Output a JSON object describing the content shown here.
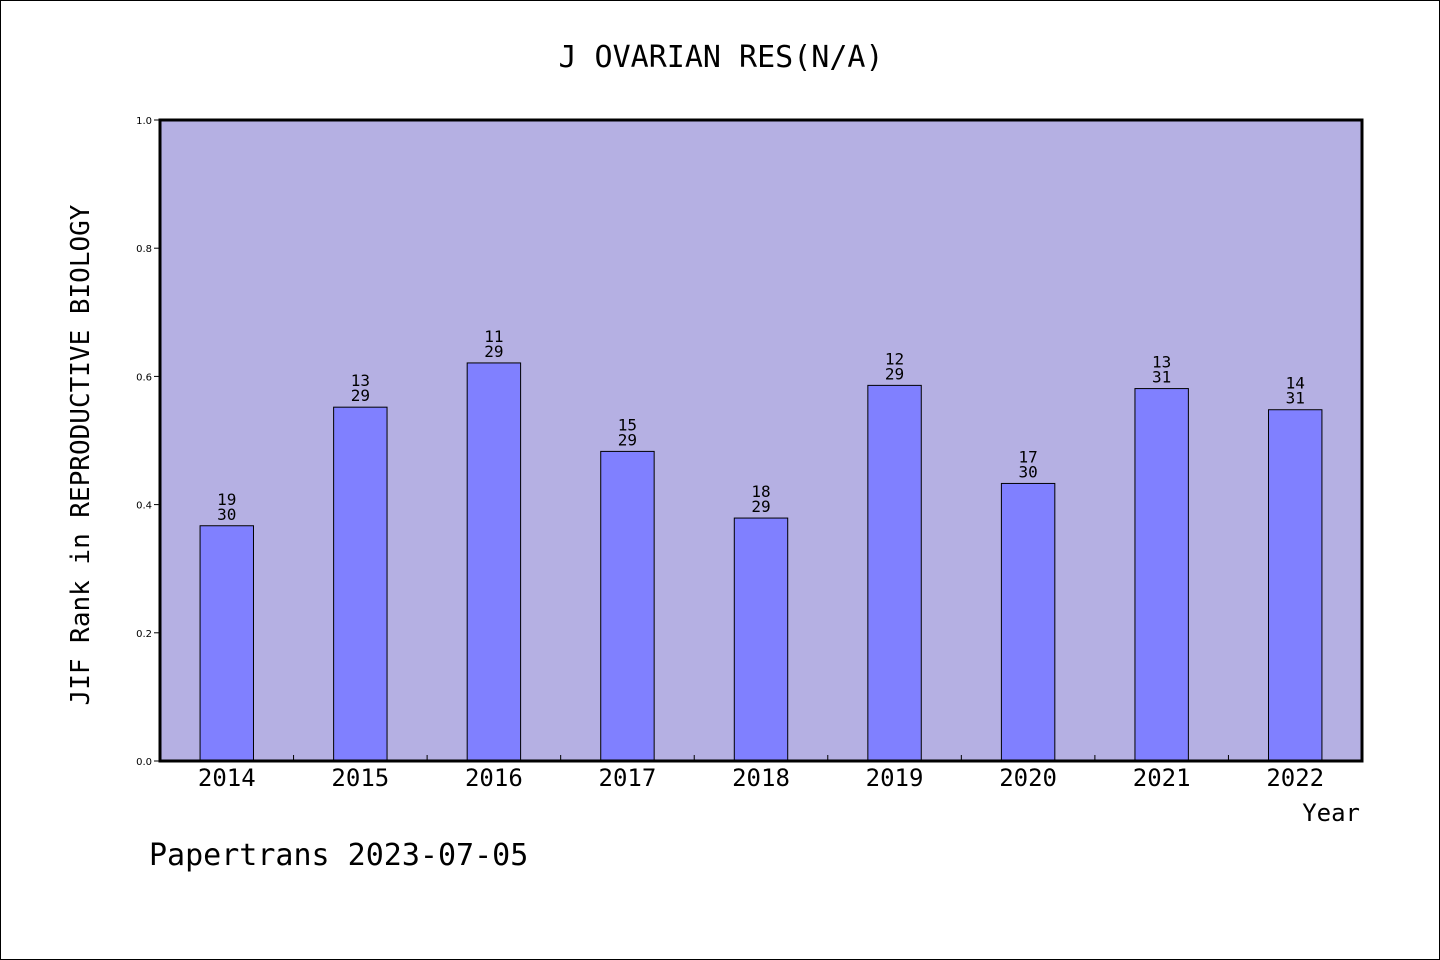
{
  "chart_data": {
    "type": "bar",
    "title": "J OVARIAN RES(N/A)",
    "xlabel": "Year",
    "ylabel": "JIF Rank in REPRODUCTIVE BIOLOGY",
    "ylim": [
      0,
      1.0
    ],
    "yticks": [
      "0.0",
      "0.2",
      "0.4",
      "0.6",
      "0.8",
      "1.0"
    ],
    "grid": false,
    "categories": [
      "2014",
      "2015",
      "2016",
      "2017",
      "2018",
      "2019",
      "2020",
      "2021",
      "2022"
    ],
    "values": [
      0.367,
      0.552,
      0.621,
      0.483,
      0.379,
      0.586,
      0.433,
      0.581,
      0.548
    ],
    "rank": [
      "19",
      "13",
      "11",
      "15",
      "18",
      "12",
      "17",
      "13",
      "14"
    ],
    "total": [
      "30",
      "29",
      "29",
      "29",
      "29",
      "29",
      "30",
      "31",
      "31"
    ],
    "colors": {
      "plot_bg": "#b5b0e3",
      "bar": "#8080ff",
      "outline": "#000000"
    }
  },
  "footer": "Papertrans 2023-07-05"
}
